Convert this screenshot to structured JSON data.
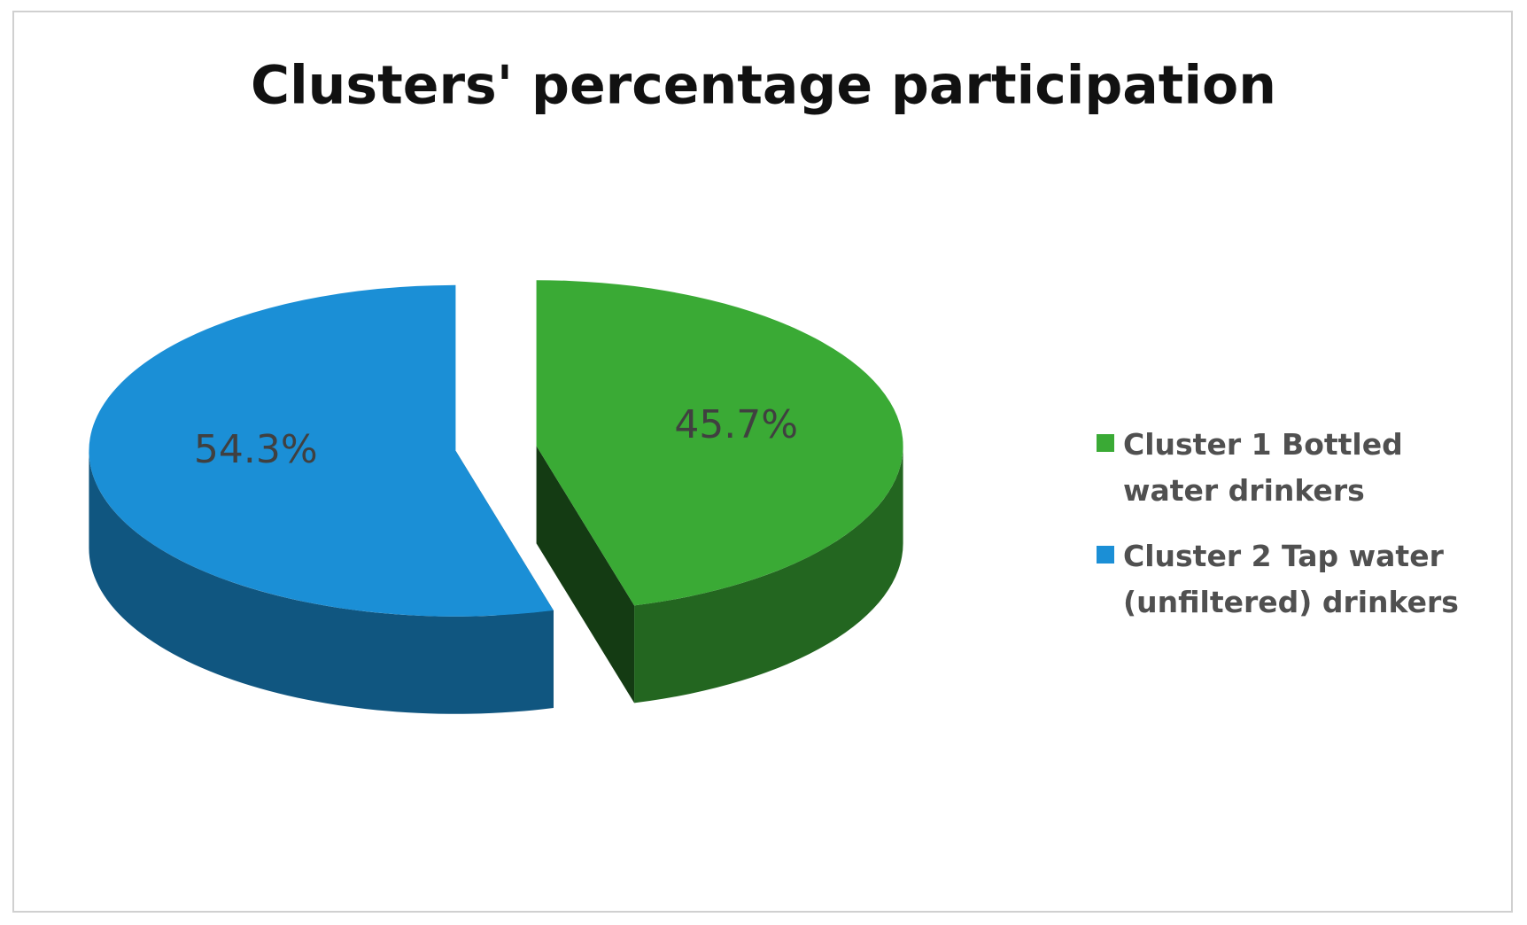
{
  "chart_data": {
    "type": "pie",
    "title": "Clusters' percentage participation",
    "categories": [
      "Cluster 1 Bottled water drinkers",
      "Cluster 2 Tap water (unfiltered) drinkers"
    ],
    "values": [
      45.7,
      54.3
    ],
    "value_labels": [
      "45.7%",
      "54.3%"
    ],
    "colors": [
      "#3aaa35",
      "#1b8fd6"
    ],
    "legend": "right"
  }
}
